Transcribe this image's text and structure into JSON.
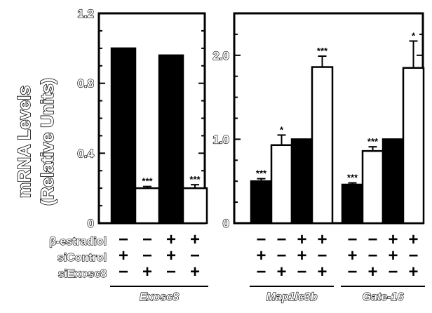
{
  "chart_data": [
    {
      "type": "bar",
      "ylabel": [
        "mRNA Levels",
        "(Relative Units)"
      ],
      "ylim": [
        0,
        1.2
      ],
      "yticks": [
        "0",
        "0.4",
        "0.8",
        "1.2"
      ],
      "ytick_values": [
        0,
        0.4,
        0.8,
        1.2
      ],
      "groups": [
        {
          "gene": "Exosc8",
          "bars": [
            {
              "value": 1.0,
              "error": 0,
              "fill": "black",
              "sig": ""
            },
            {
              "value": 0.2,
              "error": 0.01,
              "fill": "white",
              "sig": "***"
            },
            {
              "value": 0.96,
              "error": 0,
              "fill": "black",
              "sig": ""
            },
            {
              "value": 0.2,
              "error": 0.02,
              "fill": "white",
              "sig": "***"
            }
          ]
        }
      ]
    },
    {
      "type": "bar",
      "ylim": [
        0,
        2.5
      ],
      "yticks": [
        "0",
        "1.0",
        "2.0"
      ],
      "ytick_values": [
        0,
        1.0,
        2.0
      ],
      "groups": [
        {
          "gene": "Map1lc3b",
          "bars": [
            {
              "value": 0.5,
              "error": 0.03,
              "fill": "black",
              "sig": "***"
            },
            {
              "value": 0.93,
              "error": 0.12,
              "fill": "white",
              "sig": "*"
            },
            {
              "value": 1.0,
              "error": 0,
              "fill": "black",
              "sig": ""
            },
            {
              "value": 1.86,
              "error": 0.13,
              "fill": "white",
              "sig": "***"
            }
          ]
        },
        {
          "gene": "Gate-16",
          "bars": [
            {
              "value": 0.46,
              "error": 0.02,
              "fill": "black",
              "sig": "***"
            },
            {
              "value": 0.86,
              "error": 0.05,
              "fill": "white",
              "sig": "***"
            },
            {
              "value": 1.0,
              "error": 0,
              "fill": "black",
              "sig": ""
            },
            {
              "value": 1.85,
              "error": 0.32,
              "fill": "white",
              "sig": "*"
            }
          ]
        }
      ]
    }
  ],
  "conditions": {
    "labels": [
      "β-estradiol",
      "siControl",
      "siExosc8"
    ],
    "signs": [
      [
        "−",
        "−",
        "+",
        "+"
      ],
      [
        "+",
        "−",
        "+",
        "−"
      ],
      [
        "−",
        "+",
        "−",
        "+"
      ]
    ]
  },
  "colors": {
    "bar_dark": "#000000",
    "bar_light": "#ffffff",
    "axis": "#000000"
  }
}
